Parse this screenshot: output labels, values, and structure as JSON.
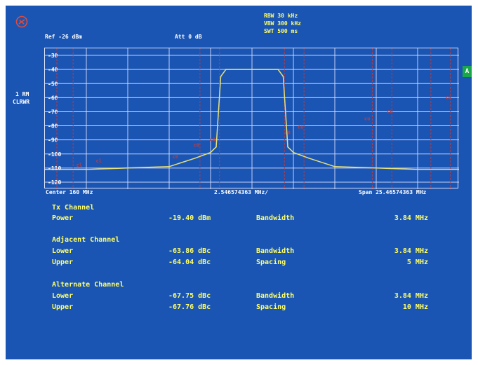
{
  "header": {
    "rbw": "RBW 30 kHz",
    "vbw": "VBW 300 kHz",
    "swt": "SWT 500 ms",
    "ref": "Ref -26 dBm",
    "att": "Att  0 dB"
  },
  "side": {
    "line1": "1 RM",
    "line2": "CLRWR",
    "trigger_label": "A"
  },
  "y_ticks": [
    "-30",
    "-40",
    "-50",
    "-60",
    "-70",
    "-80",
    "-90",
    "-100",
    "-110",
    "-120"
  ],
  "footer": {
    "center": "Center 160 MHz",
    "div": "2.546574363 MHz/",
    "span": "Span 25.46574363 MHz"
  },
  "markers": [
    "cl",
    "cl",
    "c0",
    "c0",
    "c0",
    "c0",
    "cu",
    "cu",
    "cu",
    "cu",
    "cu"
  ],
  "tx_channel": {
    "heading": "Tx Channel",
    "rows": [
      {
        "label": "Power",
        "value": "-19.40 dBm",
        "param": "Bandwidth",
        "param_value": "3.84 MHz"
      }
    ]
  },
  "adjacent_channel": {
    "heading": "Adjacent Channel",
    "rows": [
      {
        "label": "Lower",
        "value": "-63.86 dBc",
        "param": "Bandwidth",
        "param_value": "3.84 MHz"
      },
      {
        "label": "Upper",
        "value": "-64.04 dBc",
        "param": "Spacing",
        "param_value": "5 MHz"
      }
    ]
  },
  "alternate_channel": {
    "heading": "Alternate Channel",
    "rows": [
      {
        "label": "Lower",
        "value": "-67.75 dBc",
        "param": "Bandwidth",
        "param_value": "3.84 MHz"
      },
      {
        "label": "Upper",
        "value": "-67.76 dBc",
        "param": "Spacing",
        "param_value": "10 MHz"
      }
    ]
  },
  "colors": {
    "background": "#1b55b3",
    "trace": "#e8e27a",
    "text": "#ffff66",
    "marker_lines": "#c23b3b"
  },
  "chart_data": {
    "type": "line",
    "ylabel": "dBm",
    "ylim": [
      -125,
      -25
    ],
    "x_center_mhz": 160,
    "x_span_mhz": 25.46574363,
    "x": [
      -12.73,
      -10.19,
      -7.64,
      -5.09,
      -3.5,
      -2.55,
      -2.2,
      -1.92,
      -1.6,
      0,
      1.6,
      1.92,
      2.2,
      2.55,
      3.5,
      5.09,
      7.64,
      10.19,
      12.73
    ],
    "y": [
      -111,
      -111,
      -110,
      -109,
      -103,
      -99,
      -95,
      -45,
      -40,
      -40,
      -40,
      -45,
      -95,
      -99,
      -103,
      -109,
      -110,
      -111,
      -111
    ],
    "series": [
      {
        "values": [
          -111,
          -111,
          -110,
          -109,
          -103,
          -99,
          -95,
          -45,
          -40,
          -40,
          -40,
          -45,
          -95,
          -99,
          -103,
          -109,
          -110,
          -111,
          -111
        ]
      }
    ]
  }
}
